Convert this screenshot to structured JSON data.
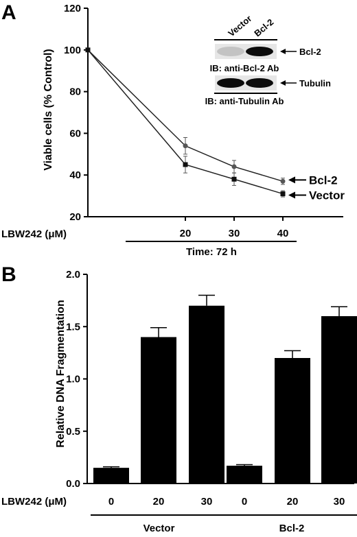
{
  "chart_data": [
    {
      "panel": "A",
      "type": "line",
      "ylabel": "Viable cells (% Control)",
      "ylim": [
        20,
        120
      ],
      "yticks": [
        20,
        40,
        60,
        80,
        100,
        120
      ],
      "xtick_labels": [
        "20",
        "30",
        "40"
      ],
      "x_prefix": "LBW242 (μM)",
      "x_bracket_label": "Time: 72 h",
      "series": [
        {
          "name": "Bcl-2",
          "marker": "circle",
          "x": [
            0,
            20,
            30,
            40
          ],
          "values": [
            100,
            54,
            44,
            37
          ],
          "err": [
            0,
            4,
            3,
            1.5
          ]
        },
        {
          "name": "Vector",
          "marker": "square",
          "x": [
            0,
            20,
            30,
            40
          ],
          "values": [
            100,
            45,
            38,
            31
          ],
          "err": [
            0,
            4,
            3,
            1.5
          ]
        }
      ],
      "inset": {
        "columns": [
          "Vector",
          "Bcl-2"
        ],
        "rows": [
          {
            "label": "Bcl-2",
            "caption": "IB: anti-Bcl-2 Ab",
            "intensity": [
              0.15,
              0.95
            ]
          },
          {
            "label": "Tubulin",
            "caption": "IB: anti-Tubulin Ab",
            "intensity": [
              0.95,
              0.95
            ]
          }
        ]
      }
    },
    {
      "panel": "B",
      "type": "bar",
      "ylabel": "Relative DNA Fragmentation",
      "ylim": [
        0,
        2
      ],
      "yticks": [
        "0.0",
        "0.5",
        "1.0",
        "1.5",
        "2.0"
      ],
      "x_prefix": "LBW242 (μM)",
      "groups": [
        {
          "name": "Vector",
          "categories": [
            "0",
            "20",
            "30"
          ],
          "values": [
            0.15,
            1.4,
            1.7
          ],
          "err": [
            0.01,
            0.09,
            0.1
          ]
        },
        {
          "name": "Bcl-2",
          "categories": [
            "0",
            "20",
            "30"
          ],
          "values": [
            0.17,
            1.2,
            1.6
          ],
          "err": [
            0.01,
            0.07,
            0.09
          ]
        }
      ]
    }
  ]
}
